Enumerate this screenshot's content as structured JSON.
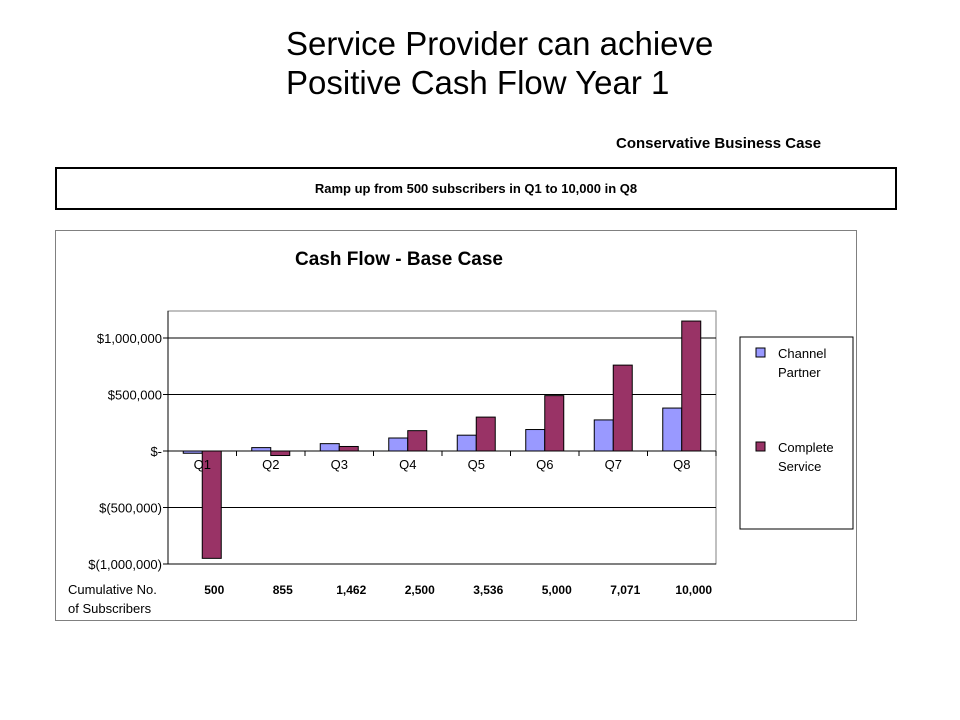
{
  "slide": {
    "title_line1": "Service Provider can achieve",
    "title_line2": "Positive Cash Flow Year 1",
    "subtitle": "Conservative Business Case",
    "note": "Ramp up from 500 subscribers in Q1 to 10,000 in Q8"
  },
  "chart_data": {
    "type": "bar",
    "title": "Cash Flow - Base Case",
    "xlabel": "",
    "ylabel": "",
    "categories": [
      "Q1",
      "Q2",
      "Q3",
      "Q4",
      "Q5",
      "Q6",
      "Q7",
      "Q8"
    ],
    "series": [
      {
        "name": "Channel Partner",
        "color": "#9999ff",
        "values": [
          -20000,
          30000,
          65000,
          115000,
          140000,
          190000,
          275000,
          380000
        ]
      },
      {
        "name": "Complete Service",
        "color": "#993366",
        "values": [
          -950000,
          -40000,
          40000,
          180000,
          300000,
          490000,
          760000,
          1150000
        ]
      }
    ],
    "ylim": [
      -1000000,
      1250000
    ],
    "yticks": [
      1000000,
      500000,
      0,
      -500000,
      -1000000
    ],
    "ytick_labels": [
      "$1,000,000",
      "$500,000",
      "$-",
      "$(500,000)",
      "$(1,000,000)"
    ],
    "grid": true,
    "legend_position": "right",
    "table_row": {
      "label_line1": "Cumulative No.",
      "label_line2": "of Subscribers",
      "values": [
        "500",
        "855",
        "1,462",
        "2,500",
        "3,536",
        "5,000",
        "7,071",
        "10,000"
      ]
    }
  }
}
